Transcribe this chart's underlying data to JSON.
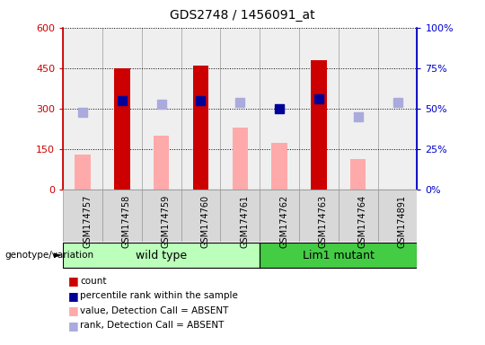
{
  "title": "GDS2748 / 1456091_at",
  "samples": [
    "GSM174757",
    "GSM174758",
    "GSM174759",
    "GSM174760",
    "GSM174761",
    "GSM174762",
    "GSM174763",
    "GSM174764",
    "GSM174891"
  ],
  "count_values": [
    null,
    450,
    null,
    460,
    null,
    null,
    480,
    null,
    null
  ],
  "count_absent_values": [
    130,
    null,
    200,
    null,
    230,
    175,
    null,
    115,
    null
  ],
  "rank_values": [
    null,
    330,
    null,
    330,
    null,
    300,
    335,
    null,
    null
  ],
  "rank_absent_values": [
    285,
    null,
    315,
    null,
    323,
    null,
    null,
    270,
    323
  ],
  "ylim_left": [
    0,
    600
  ],
  "ylim_right": [
    0,
    100
  ],
  "left_ticks": [
    0,
    150,
    300,
    450,
    600
  ],
  "right_ticks": [
    0,
    25,
    50,
    75,
    100
  ],
  "left_tick_labels": [
    "0",
    "150",
    "300",
    "450",
    "600"
  ],
  "right_tick_labels": [
    "0%",
    "25%",
    "50%",
    "75%",
    "100%"
  ],
  "left_color": "#cc0000",
  "right_color": "#0000cc",
  "count_bar_color": "#cc0000",
  "count_absent_bar_color": "#ffaaaa",
  "rank_dot_color": "#000099",
  "rank_absent_dot_color": "#aaaadd",
  "wild_type_indices": [
    0,
    1,
    2,
    3,
    4
  ],
  "lim1_mutant_indices": [
    5,
    6,
    7,
    8
  ],
  "wild_type_label": "wild type",
  "lim1_mutant_label": "Lim1 mutant",
  "genotype_label": "genotype/variation",
  "legend_items": [
    {
      "label": "count",
      "color": "#cc0000"
    },
    {
      "label": "percentile rank within the sample",
      "color": "#000099"
    },
    {
      "label": "value, Detection Call = ABSENT",
      "color": "#ffaaaa"
    },
    {
      "label": "rank, Detection Call = ABSENT",
      "color": "#aaaadd"
    }
  ],
  "wt_color": "#bbffbb",
  "lm_color": "#44cc44",
  "bar_width": 0.4,
  "dot_size": 7
}
